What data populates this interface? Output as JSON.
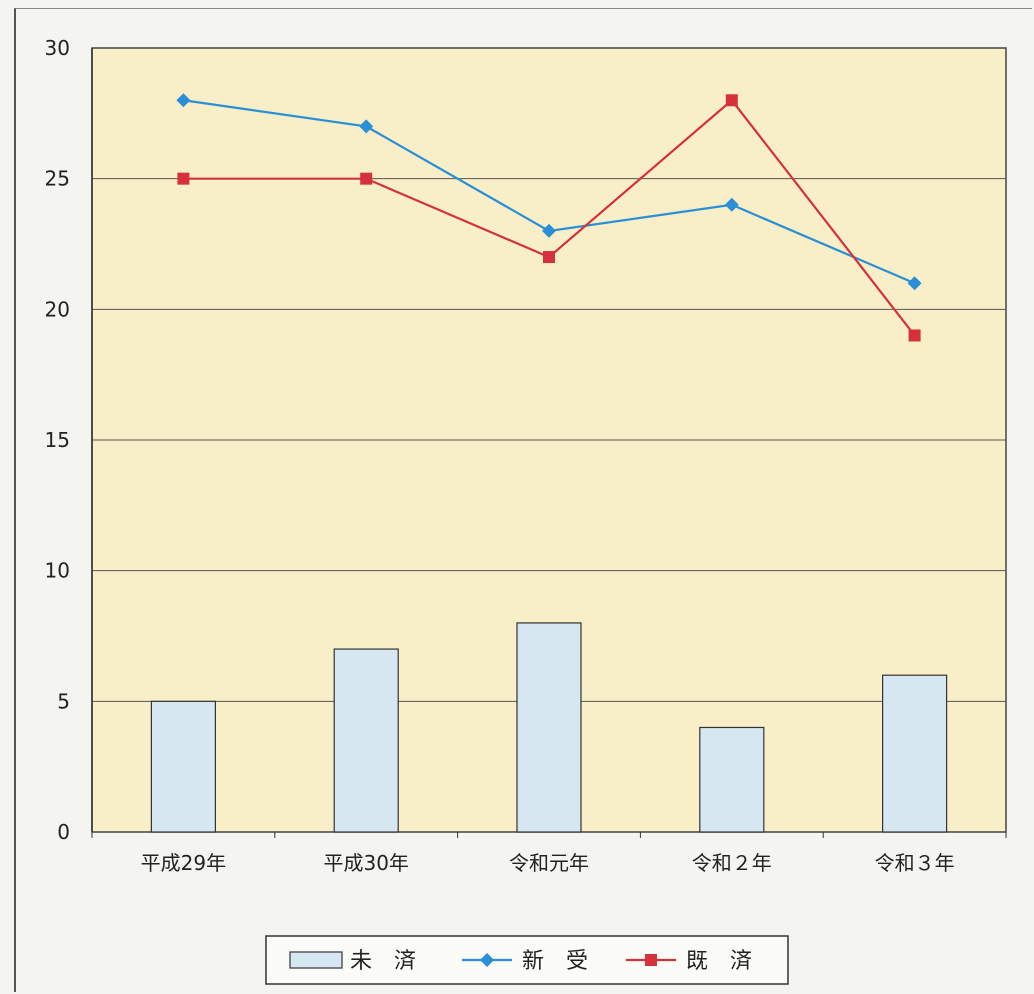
{
  "chart_data": {
    "type": "bar",
    "categories": [
      "平成29年",
      "平成30年",
      "令和元年",
      "令和２年",
      "令和３年"
    ],
    "ylim": [
      0,
      30
    ],
    "yticks": [
      0,
      5,
      10,
      15,
      20,
      25,
      30
    ],
    "grid": true,
    "legend_position": "bottom-center",
    "series": [
      {
        "name": "未　済",
        "type": "bar",
        "values": [
          5,
          7,
          8,
          4,
          6
        ],
        "color": "#d6e7f2"
      },
      {
        "name": "新　受",
        "type": "line",
        "marker": "diamond",
        "values": [
          28,
          27,
          23,
          24,
          21
        ],
        "color": "#2a8fd6"
      },
      {
        "name": "既　済",
        "type": "line",
        "marker": "square",
        "values": [
          25,
          25,
          22,
          28,
          19
        ],
        "color": "#d6313a"
      }
    ],
    "plot_background": "#f8efc8"
  }
}
